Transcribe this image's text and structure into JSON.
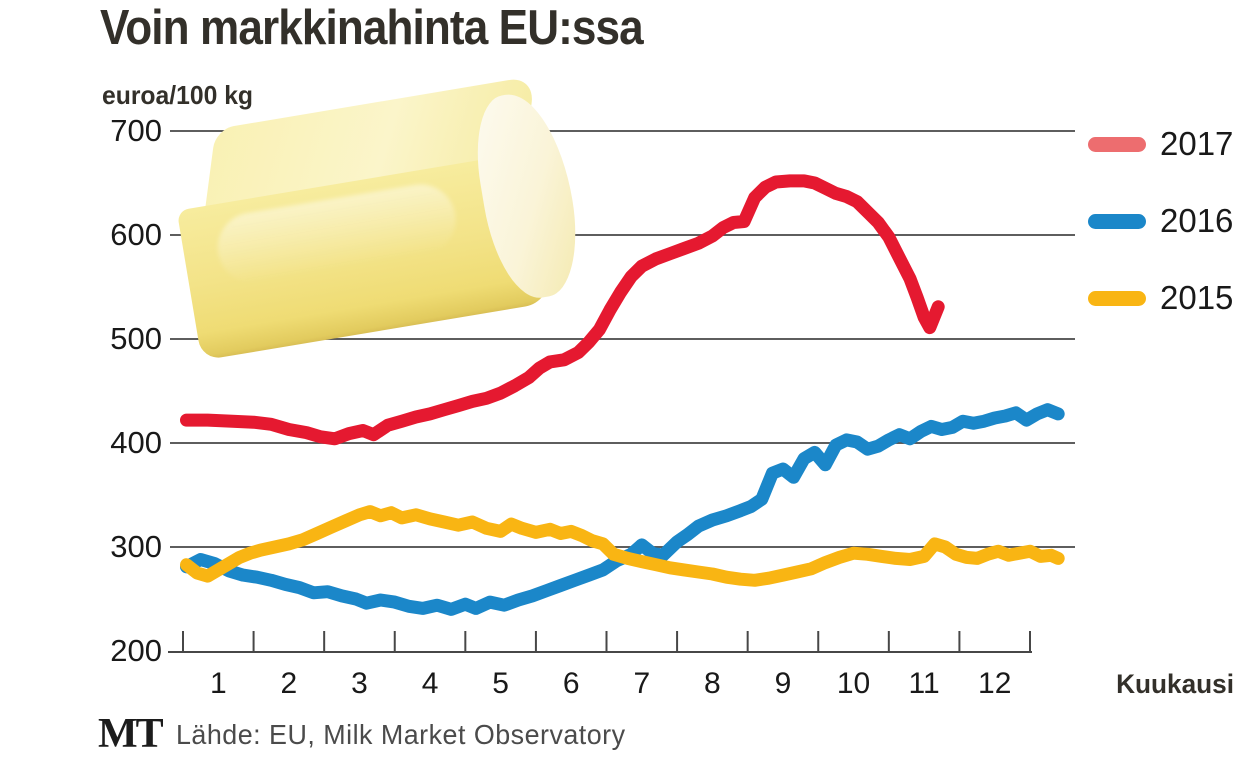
{
  "title": "Voin markkinahinta EU:ssa",
  "y_axis": {
    "unit_label": "euroa/100 kg",
    "ticks": [
      "700",
      "600",
      "500",
      "400",
      "300",
      "200"
    ]
  },
  "x_axis": {
    "ticks": [
      "1",
      "2",
      "3",
      "4",
      "5",
      "6",
      "7",
      "8",
      "9",
      "10",
      "11",
      "12"
    ],
    "label": "Kuukausi"
  },
  "legend": {
    "items": [
      {
        "label": "2017",
        "swatch_color": "#ed6d6f"
      },
      {
        "label": "2016",
        "swatch_color": "#1b87c9"
      },
      {
        "label": "2015",
        "swatch_color": "#f9b513"
      }
    ]
  },
  "footer": {
    "logo": "MT",
    "source": "Lähde: EU, Milk Market Observatory"
  },
  "decoration": {
    "butter_image": "butter-block-photo"
  },
  "chart_data": {
    "type": "line",
    "title": "Voin markkinahinta EU:ssa",
    "ylabel": "euroa/100 kg",
    "xlabel": "Kuukausi",
    "ylim": [
      200,
      700
    ],
    "x_months": [
      1,
      12
    ],
    "grid": true,
    "gridline_values": [
      300,
      400,
      500,
      600,
      700
    ],
    "legend_position": "right",
    "colors": {
      "grid": "#474747",
      "axis_text": "#191919"
    },
    "series": [
      {
        "name": "2017",
        "color": "#e51930",
        "points": [
          [
            0.05,
            422
          ],
          [
            0.35,
            422
          ],
          [
            0.7,
            421
          ],
          [
            1.0,
            420
          ],
          [
            1.25,
            418
          ],
          [
            1.5,
            413
          ],
          [
            1.75,
            410
          ],
          [
            1.95,
            406
          ],
          [
            2.15,
            404
          ],
          [
            2.35,
            409
          ],
          [
            2.55,
            412
          ],
          [
            2.7,
            408
          ],
          [
            2.9,
            417
          ],
          [
            3.1,
            421
          ],
          [
            3.3,
            425
          ],
          [
            3.5,
            428
          ],
          [
            3.7,
            432
          ],
          [
            3.9,
            436
          ],
          [
            4.1,
            440
          ],
          [
            4.3,
            443
          ],
          [
            4.5,
            448
          ],
          [
            4.7,
            455
          ],
          [
            4.9,
            463
          ],
          [
            5.05,
            472
          ],
          [
            5.2,
            478
          ],
          [
            5.4,
            480
          ],
          [
            5.6,
            487
          ],
          [
            5.75,
            497
          ],
          [
            5.9,
            509
          ],
          [
            6.05,
            528
          ],
          [
            6.2,
            545
          ],
          [
            6.35,
            560
          ],
          [
            6.5,
            570
          ],
          [
            6.7,
            577
          ],
          [
            6.9,
            582
          ],
          [
            7.1,
            587
          ],
          [
            7.3,
            592
          ],
          [
            7.5,
            599
          ],
          [
            7.65,
            607
          ],
          [
            7.8,
            612
          ],
          [
            7.95,
            613
          ],
          [
            8.1,
            636
          ],
          [
            8.25,
            646
          ],
          [
            8.4,
            651
          ],
          [
            8.6,
            652
          ],
          [
            8.8,
            652
          ],
          [
            8.95,
            650
          ],
          [
            9.1,
            645
          ],
          [
            9.25,
            640
          ],
          [
            9.4,
            637
          ],
          [
            9.55,
            632
          ],
          [
            9.7,
            622
          ],
          [
            9.85,
            612
          ],
          [
            10.0,
            598
          ],
          [
            10.15,
            578
          ],
          [
            10.3,
            558
          ],
          [
            10.4,
            540
          ],
          [
            10.5,
            521
          ],
          [
            10.58,
            511
          ],
          [
            10.7,
            531
          ]
        ]
      },
      {
        "name": "2016",
        "color": "#1b87c9",
        "points": [
          [
            0.05,
            281
          ],
          [
            0.25,
            288
          ],
          [
            0.45,
            284
          ],
          [
            0.65,
            277
          ],
          [
            0.85,
            273
          ],
          [
            1.05,
            271
          ],
          [
            1.25,
            268
          ],
          [
            1.45,
            264
          ],
          [
            1.65,
            261
          ],
          [
            1.85,
            256
          ],
          [
            2.05,
            257
          ],
          [
            2.25,
            253
          ],
          [
            2.45,
            250
          ],
          [
            2.6,
            246
          ],
          [
            2.8,
            249
          ],
          [
            3.0,
            247
          ],
          [
            3.2,
            243
          ],
          [
            3.4,
            241
          ],
          [
            3.6,
            244
          ],
          [
            3.8,
            240
          ],
          [
            4.0,
            245
          ],
          [
            4.15,
            241
          ],
          [
            4.35,
            247
          ],
          [
            4.55,
            244
          ],
          [
            4.75,
            249
          ],
          [
            4.95,
            253
          ],
          [
            5.15,
            258
          ],
          [
            5.35,
            263
          ],
          [
            5.55,
            268
          ],
          [
            5.75,
            273
          ],
          [
            5.95,
            278
          ],
          [
            6.15,
            287
          ],
          [
            6.35,
            293
          ],
          [
            6.5,
            302
          ],
          [
            6.65,
            294
          ],
          [
            6.8,
            292
          ],
          [
            7.0,
            305
          ],
          [
            7.15,
            312
          ],
          [
            7.3,
            320
          ],
          [
            7.5,
            326
          ],
          [
            7.7,
            330
          ],
          [
            7.9,
            335
          ],
          [
            8.05,
            339
          ],
          [
            8.2,
            346
          ],
          [
            8.35,
            371
          ],
          [
            8.5,
            375
          ],
          [
            8.65,
            367
          ],
          [
            8.8,
            385
          ],
          [
            8.95,
            391
          ],
          [
            9.1,
            379
          ],
          [
            9.25,
            398
          ],
          [
            9.4,
            403
          ],
          [
            9.55,
            401
          ],
          [
            9.7,
            394
          ],
          [
            9.85,
            397
          ],
          [
            10.0,
            403
          ],
          [
            10.15,
            408
          ],
          [
            10.3,
            404
          ],
          [
            10.45,
            411
          ],
          [
            10.6,
            416
          ],
          [
            10.75,
            413
          ],
          [
            10.9,
            415
          ],
          [
            11.05,
            421
          ],
          [
            11.2,
            419
          ],
          [
            11.35,
            421
          ],
          [
            11.5,
            424
          ],
          [
            11.65,
            426
          ],
          [
            11.8,
            429
          ],
          [
            11.95,
            422
          ],
          [
            12.1,
            428
          ],
          [
            12.25,
            432
          ],
          [
            12.4,
            428
          ]
        ]
      },
      {
        "name": "2015",
        "color": "#f9b513",
        "points": [
          [
            0.05,
            283
          ],
          [
            0.2,
            275
          ],
          [
            0.35,
            272
          ],
          [
            0.5,
            278
          ],
          [
            0.65,
            284
          ],
          [
            0.8,
            290
          ],
          [
            0.95,
            294
          ],
          [
            1.1,
            297
          ],
          [
            1.3,
            300
          ],
          [
            1.5,
            303
          ],
          [
            1.7,
            307
          ],
          [
            1.9,
            313
          ],
          [
            2.1,
            319
          ],
          [
            2.3,
            325
          ],
          [
            2.5,
            331
          ],
          [
            2.65,
            334
          ],
          [
            2.8,
            330
          ],
          [
            2.95,
            333
          ],
          [
            3.1,
            328
          ],
          [
            3.3,
            331
          ],
          [
            3.5,
            327
          ],
          [
            3.7,
            324
          ],
          [
            3.9,
            321
          ],
          [
            4.1,
            324
          ],
          [
            4.3,
            318
          ],
          [
            4.5,
            315
          ],
          [
            4.65,
            322
          ],
          [
            4.8,
            318
          ],
          [
            5.0,
            314
          ],
          [
            5.2,
            317
          ],
          [
            5.35,
            313
          ],
          [
            5.5,
            315
          ],
          [
            5.65,
            311
          ],
          [
            5.8,
            306
          ],
          [
            5.95,
            303
          ],
          [
            6.1,
            293
          ],
          [
            6.3,
            289
          ],
          [
            6.5,
            286
          ],
          [
            6.7,
            283
          ],
          [
            6.9,
            280
          ],
          [
            7.1,
            278
          ],
          [
            7.3,
            276
          ],
          [
            7.5,
            274
          ],
          [
            7.7,
            271
          ],
          [
            7.9,
            269
          ],
          [
            8.1,
            268
          ],
          [
            8.3,
            270
          ],
          [
            8.5,
            273
          ],
          [
            8.7,
            276
          ],
          [
            8.9,
            279
          ],
          [
            9.1,
            285
          ],
          [
            9.3,
            290
          ],
          [
            9.5,
            294
          ],
          [
            9.7,
            293
          ],
          [
            9.9,
            291
          ],
          [
            10.1,
            289
          ],
          [
            10.3,
            288
          ],
          [
            10.5,
            291
          ],
          [
            10.65,
            303
          ],
          [
            10.8,
            300
          ],
          [
            10.95,
            293
          ],
          [
            11.1,
            290
          ],
          [
            11.25,
            289
          ],
          [
            11.4,
            293
          ],
          [
            11.55,
            296
          ],
          [
            11.7,
            292
          ],
          [
            11.85,
            294
          ],
          [
            12.0,
            296
          ],
          [
            12.15,
            291
          ],
          [
            12.3,
            292
          ],
          [
            12.4,
            289
          ]
        ]
      }
    ]
  }
}
